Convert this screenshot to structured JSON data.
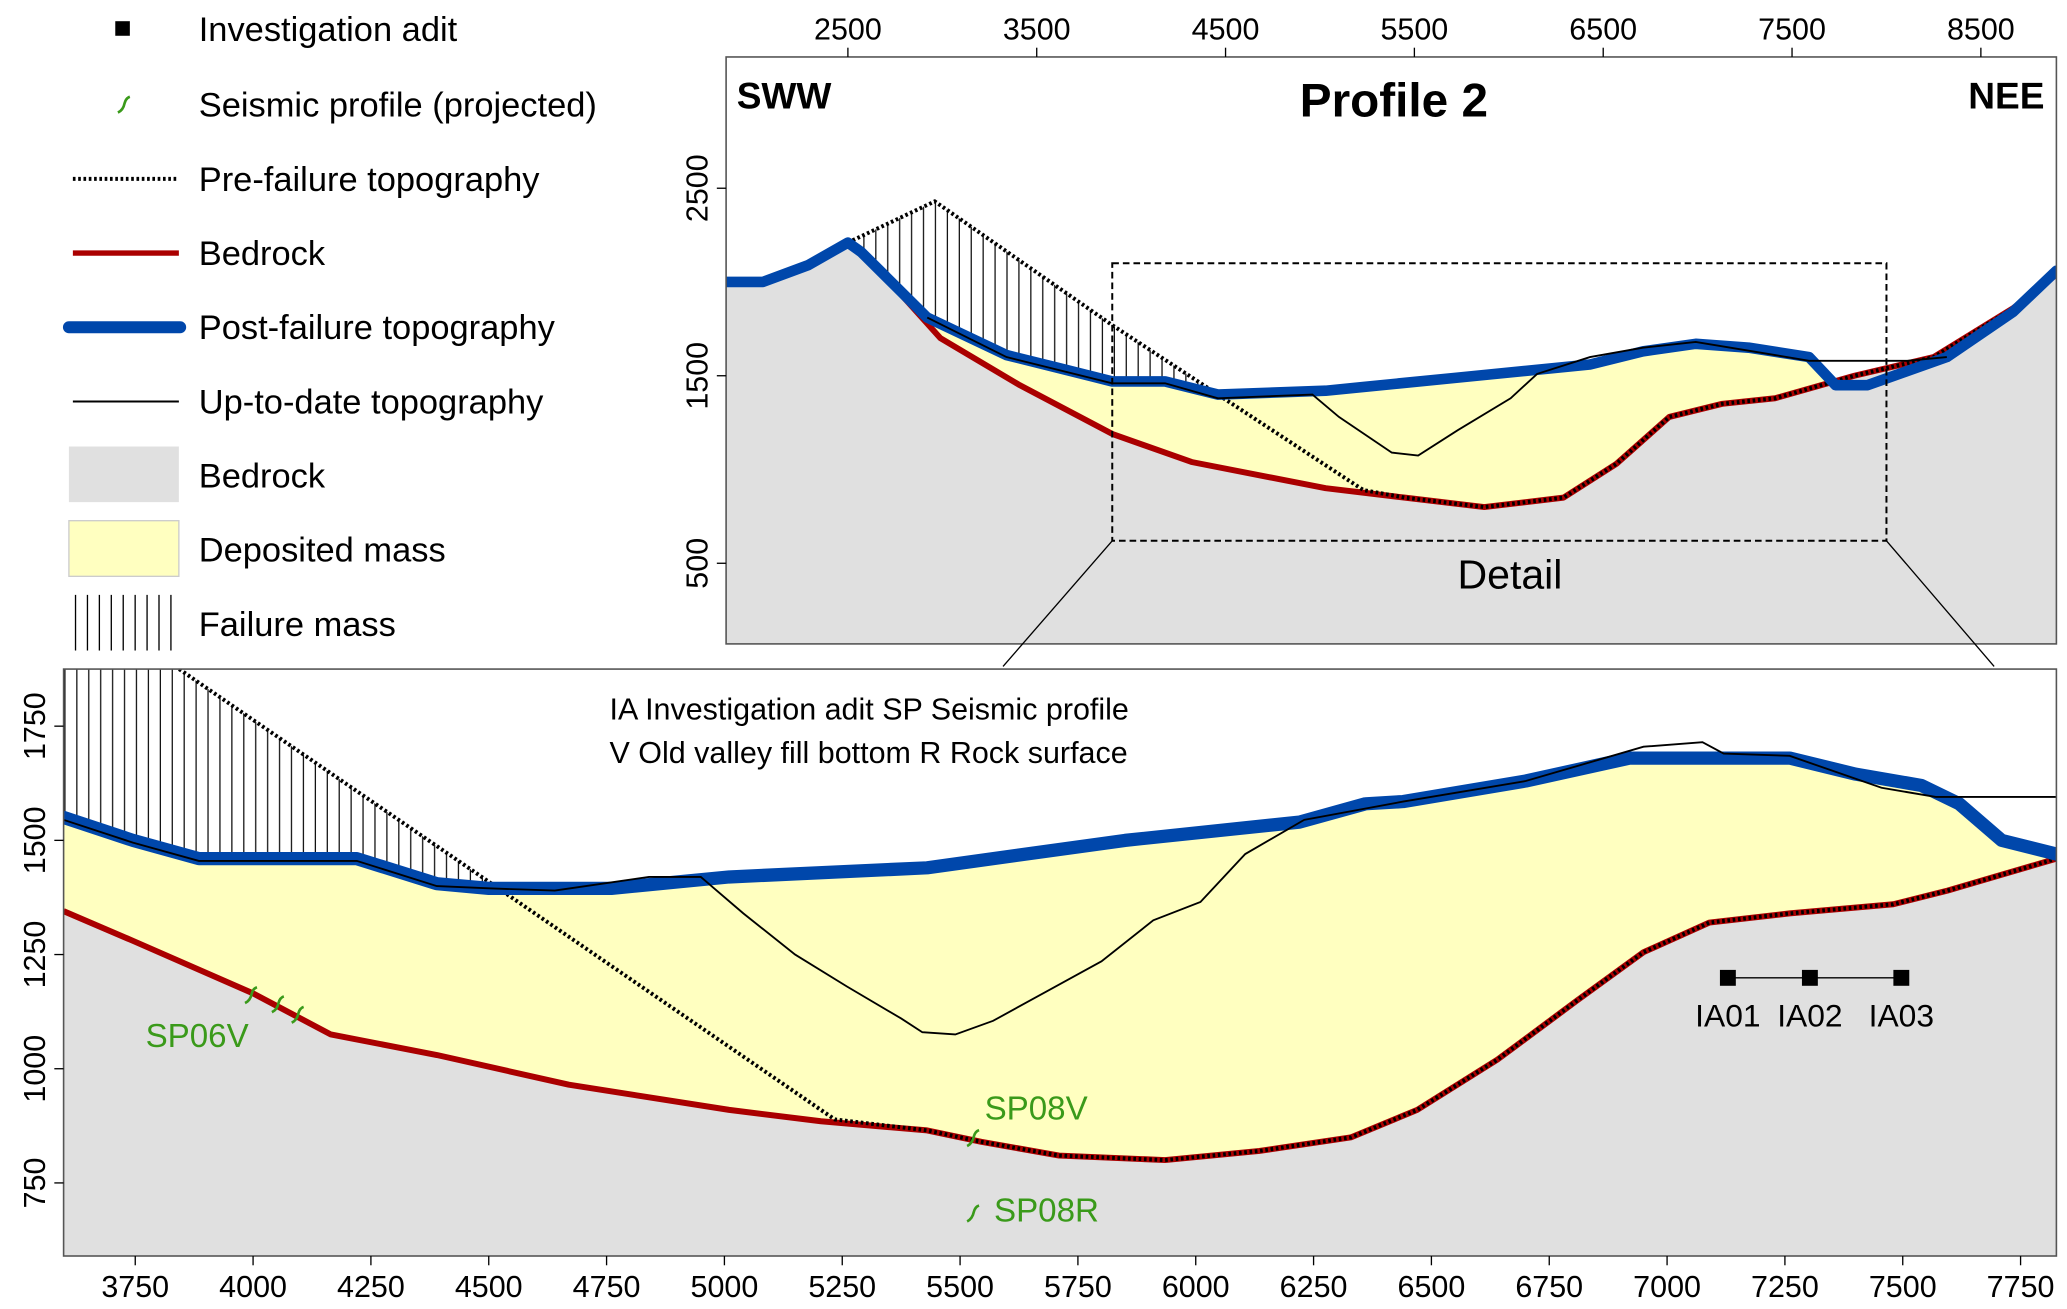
{
  "colors": {
    "bedrock_fill": "#e0e0e0",
    "deposited_fill": "#ffffc0",
    "bedrock_line": "#aa0000",
    "post_failure": "#0047ab",
    "seismic": "#3a9a1a",
    "black": "#000000"
  },
  "legend": {
    "items": [
      {
        "label": "Investigation adit",
        "symbol": "square-icon",
        "color": "#000000"
      },
      {
        "label": "Seismic profile (projected)",
        "symbol": "seismic-mark-icon",
        "color": "#3a9a1a"
      },
      {
        "label": "Pre-failure topography",
        "symbol": "dotted-line",
        "color": "#000000"
      },
      {
        "label": "Bedrock",
        "symbol": "red-line",
        "color": "#aa0000"
      },
      {
        "label": "Post-failure topography",
        "symbol": "thick-blue-line",
        "color": "#0047ab"
      },
      {
        "label": "Up-to-date topography",
        "symbol": "thin-line",
        "color": "#000000"
      },
      {
        "label": "Bedrock",
        "symbol": "gray-fill",
        "color": "#e0e0e0"
      },
      {
        "label": "Deposited mass",
        "symbol": "yellow-fill",
        "color": "#ffffc0"
      },
      {
        "label": "Failure mass",
        "symbol": "hatch",
        "color": "#000000"
      }
    ]
  },
  "chart_data": [
    {
      "type": "line",
      "title": "Profile 2",
      "left_label": "SWW",
      "right_label": "NEE",
      "xaxis_position": "top",
      "xlim": [
        1855,
        8900
      ],
      "ylim": [
        70,
        3200
      ],
      "xticks": [
        2500,
        3500,
        4500,
        5500,
        6500,
        7500,
        8500
      ],
      "yticks": [
        500,
        1500,
        2500
      ],
      "grid": false,
      "detail_box": {
        "label": "Detail",
        "x": [
          3900,
          8000
        ],
        "y": [
          620,
          2100
        ]
      },
      "series": {
        "pre_failure": {
          "name": "Pre-failure topography",
          "values": [
            [
              2500,
              2210
            ],
            [
              2960,
              2430
            ],
            [
              3900,
              1770
            ],
            [
              5230,
              890
            ],
            [
              5450,
              850
            ],
            [
              5870,
              800
            ],
            [
              6290,
              850
            ],
            [
              6570,
              1030
            ],
            [
              6850,
              1280
            ],
            [
              7130,
              1350
            ],
            [
              7410,
              1380
            ],
            [
              7830,
              1500
            ],
            [
              8250,
              1600
            ],
            [
              8670,
              1860
            ],
            [
              8900,
              2040
            ]
          ]
        },
        "bedrock": {
          "name": "Bedrock",
          "values": [
            [
              1855,
              2000
            ],
            [
              2050,
              2000
            ],
            [
              2290,
              2080
            ],
            [
              2500,
              2210
            ],
            [
              2570,
              2170
            ],
            [
              2990,
              1700
            ],
            [
              3410,
              1450
            ],
            [
              3900,
              1190
            ],
            [
              4320,
              1040
            ],
            [
              5030,
              900
            ],
            [
              5450,
              850
            ],
            [
              5870,
              800
            ],
            [
              6290,
              850
            ],
            [
              6570,
              1030
            ],
            [
              6850,
              1280
            ],
            [
              7130,
              1350
            ],
            [
              7410,
              1380
            ],
            [
              7830,
              1500
            ],
            [
              8250,
              1600
            ],
            [
              8670,
              1860
            ],
            [
              8900,
              2040
            ]
          ]
        },
        "post_failure": {
          "name": "Post-failure topography",
          "values": [
            [
              1855,
              2000
            ],
            [
              2050,
              2000
            ],
            [
              2290,
              2090
            ],
            [
              2500,
              2210
            ],
            [
              2570,
              2160
            ],
            [
              2920,
              1810
            ],
            [
              3340,
              1610
            ],
            [
              3620,
              1540
            ],
            [
              3900,
              1470
            ],
            [
              4180,
              1470
            ],
            [
              4460,
              1400
            ],
            [
              5030,
              1420
            ],
            [
              5730,
              1490
            ],
            [
              6430,
              1560
            ],
            [
              6710,
              1630
            ],
            [
              6990,
              1670
            ],
            [
              7270,
              1650
            ],
            [
              7590,
              1600
            ],
            [
              7730,
              1450
            ],
            [
              7900,
              1450
            ],
            [
              8320,
              1600
            ],
            [
              8670,
              1840
            ],
            [
              8900,
              2060
            ]
          ]
        },
        "up_to_date": {
          "name": "Up-to-date topography",
          "values": [
            [
              2920,
              1810
            ],
            [
              3340,
              1600
            ],
            [
              3900,
              1460
            ],
            [
              4180,
              1460
            ],
            [
              4460,
              1380
            ],
            [
              4960,
              1400
            ],
            [
              5100,
              1280
            ],
            [
              5380,
              1090
            ],
            [
              5520,
              1075
            ],
            [
              5730,
              1210
            ],
            [
              6010,
              1380
            ],
            [
              6150,
              1510
            ],
            [
              6430,
              1600
            ],
            [
              6710,
              1650
            ],
            [
              6990,
              1680
            ],
            [
              7410,
              1610
            ],
            [
              7590,
              1580
            ],
            [
              8110,
              1580
            ],
            [
              8320,
              1600
            ]
          ]
        }
      }
    },
    {
      "type": "line",
      "xaxis_position": "bottom",
      "xlim": [
        3598,
        7826
      ],
      "ylim": [
        590,
        1875
      ],
      "xticks": [
        3750,
        4000,
        4250,
        4500,
        4750,
        5000,
        5250,
        5500,
        5750,
        6000,
        6250,
        6500,
        6750,
        7000,
        7250,
        7500,
        7750
      ],
      "yticks": [
        750,
        1000,
        1250,
        1500,
        1750
      ],
      "grid": false,
      "notes": [
        "IA Investigation adit   SP Seismic profile",
        "V Old valley fill bottom  R Rock surface"
      ],
      "series": {
        "pre_failure": {
          "name": "Pre-failure topography",
          "values": [
            [
              3843,
              1875
            ],
            [
              5234,
              889
            ],
            [
              5430,
              865
            ],
            [
              5545,
              840
            ],
            [
              5710,
              810
            ],
            [
              5935,
              800
            ],
            [
              6135,
              820
            ],
            [
              6330,
              850
            ],
            [
              6470,
              910
            ],
            [
              6640,
              1020
            ],
            [
              6810,
              1150
            ],
            [
              6950,
              1255
            ],
            [
              7090,
              1320
            ],
            [
              7260,
              1340
            ],
            [
              7480,
              1360
            ],
            [
              7595,
              1390
            ],
            [
              7826,
              1460
            ]
          ]
        },
        "bedrock": {
          "name": "Bedrock",
          "values": [
            [
              3598,
              1345
            ],
            [
              3745,
              1280
            ],
            [
              4000,
              1165
            ],
            [
              4165,
              1075
            ],
            [
              4390,
              1030
            ],
            [
              4670,
              965
            ],
            [
              5010,
              910
            ],
            [
              5205,
              885
            ],
            [
              5430,
              865
            ],
            [
              5545,
              840
            ],
            [
              5710,
              810
            ],
            [
              5935,
              800
            ],
            [
              6135,
              820
            ],
            [
              6330,
              850
            ],
            [
              6470,
              910
            ],
            [
              6640,
              1020
            ],
            [
              6810,
              1150
            ],
            [
              6950,
              1255
            ],
            [
              7090,
              1320
            ],
            [
              7260,
              1340
            ],
            [
              7480,
              1360
            ],
            [
              7595,
              1390
            ],
            [
              7826,
              1460
            ]
          ]
        },
        "post_failure": {
          "name": "Post-failure topography",
          "values": [
            [
              3598,
              1550
            ],
            [
              3745,
              1500
            ],
            [
              3885,
              1460
            ],
            [
              4220,
              1460
            ],
            [
              4390,
              1405
            ],
            [
              4500,
              1395
            ],
            [
              4760,
              1395
            ],
            [
              5010,
              1420
            ],
            [
              5430,
              1440
            ],
            [
              5850,
              1500
            ],
            [
              6220,
              1540
            ],
            [
              6360,
              1580
            ],
            [
              6440,
              1585
            ],
            [
              6700,
              1630
            ],
            [
              6920,
              1680
            ],
            [
              7260,
              1680
            ],
            [
              7400,
              1645
            ],
            [
              7540,
              1620
            ],
            [
              7620,
              1580
            ],
            [
              7710,
              1500
            ],
            [
              7826,
              1470
            ]
          ]
        },
        "up_to_date": {
          "name": "Up-to-date topography",
          "values": [
            [
              3598,
              1545
            ],
            [
              3745,
              1495
            ],
            [
              3885,
              1455
            ],
            [
              4220,
              1455
            ],
            [
              4390,
              1400
            ],
            [
              4500,
              1395
            ],
            [
              4640,
              1390
            ],
            [
              4840,
              1420
            ],
            [
              4950,
              1420
            ],
            [
              5040,
              1340
            ],
            [
              5150,
              1250
            ],
            [
              5260,
              1180
            ],
            [
              5375,
              1110
            ],
            [
              5420,
              1080
            ],
            [
              5490,
              1075
            ],
            [
              5570,
              1105
            ],
            [
              5685,
              1170
            ],
            [
              5800,
              1235
            ],
            [
              5910,
              1325
            ],
            [
              6010,
              1365
            ],
            [
              6105,
              1470
            ],
            [
              6230,
              1545
            ],
            [
              6440,
              1585
            ],
            [
              6700,
              1630
            ],
            [
              6950,
              1705
            ],
            [
              7075,
              1715
            ],
            [
              7120,
              1690
            ],
            [
              7260,
              1685
            ],
            [
              7455,
              1615
            ],
            [
              7570,
              1595
            ],
            [
              7826,
              1595
            ]
          ]
        }
      },
      "seismic_profiles": [
        {
          "label": "SP06V",
          "label_at": [
            3772,
            1048
          ],
          "marks": [
            [
              3997,
              1164
            ],
            [
              4054,
              1144
            ],
            [
              4096,
              1121
            ]
          ]
        },
        {
          "label": "SP08V",
          "label_at": [
            5552,
            889
          ],
          "marks": [
            [
              5529,
              851
            ]
          ]
        },
        {
          "label": "SP08R",
          "label_at": [
            5572,
            666
          ],
          "marks": [
            [
              5529,
              686
            ]
          ]
        }
      ],
      "adits": [
        {
          "label": "IA01",
          "x": 7129,
          "y": 1199
        },
        {
          "label": "IA02",
          "x": 7303,
          "y": 1199
        },
        {
          "label": "IA03",
          "x": 7497,
          "y": 1199
        }
      ],
      "adit_label_y": 1092
    }
  ]
}
